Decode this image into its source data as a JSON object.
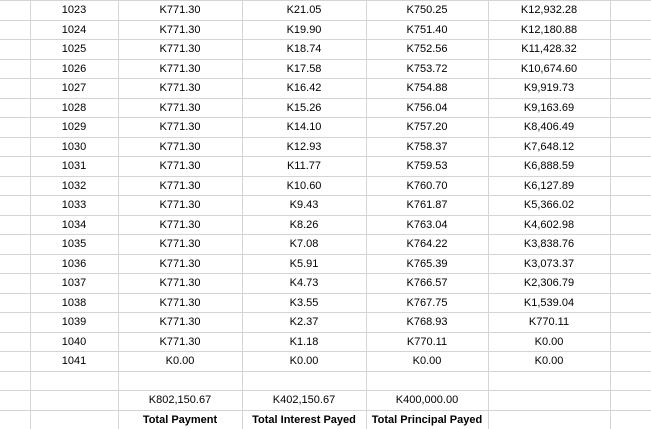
{
  "rows": [
    {
      "period": "1023",
      "payment": "K771.30",
      "interest": "K21.05",
      "principal": "K750.25",
      "balance": "K12,932.28"
    },
    {
      "period": "1024",
      "payment": "K771.30",
      "interest": "K19.90",
      "principal": "K751.40",
      "balance": "K12,180.88"
    },
    {
      "period": "1025",
      "payment": "K771.30",
      "interest": "K18.74",
      "principal": "K752.56",
      "balance": "K11,428.32"
    },
    {
      "period": "1026",
      "payment": "K771.30",
      "interest": "K17.58",
      "principal": "K753.72",
      "balance": "K10,674.60"
    },
    {
      "period": "1027",
      "payment": "K771.30",
      "interest": "K16.42",
      "principal": "K754.88",
      "balance": "K9,919.73"
    },
    {
      "period": "1028",
      "payment": "K771.30",
      "interest": "K15.26",
      "principal": "K756.04",
      "balance": "K9,163.69"
    },
    {
      "period": "1029",
      "payment": "K771.30",
      "interest": "K14.10",
      "principal": "K757.20",
      "balance": "K8,406.49"
    },
    {
      "period": "1030",
      "payment": "K771.30",
      "interest": "K12.93",
      "principal": "K758.37",
      "balance": "K7,648.12"
    },
    {
      "period": "1031",
      "payment": "K771.30",
      "interest": "K11.77",
      "principal": "K759.53",
      "balance": "K6,888.59"
    },
    {
      "period": "1032",
      "payment": "K771.30",
      "interest": "K10.60",
      "principal": "K760.70",
      "balance": "K6,127.89"
    },
    {
      "period": "1033",
      "payment": "K771.30",
      "interest": "K9.43",
      "principal": "K761.87",
      "balance": "K5,366.02"
    },
    {
      "period": "1034",
      "payment": "K771.30",
      "interest": "K8.26",
      "principal": "K763.04",
      "balance": "K4,602.98"
    },
    {
      "period": "1035",
      "payment": "K771.30",
      "interest": "K7.08",
      "principal": "K764.22",
      "balance": "K3,838.76"
    },
    {
      "period": "1036",
      "payment": "K771.30",
      "interest": "K5.91",
      "principal": "K765.39",
      "balance": "K3,073.37"
    },
    {
      "period": "1037",
      "payment": "K771.30",
      "interest": "K4.73",
      "principal": "K766.57",
      "balance": "K2,306.79"
    },
    {
      "period": "1038",
      "payment": "K771.30",
      "interest": "K3.55",
      "principal": "K767.75",
      "balance": "K1,539.04"
    },
    {
      "period": "1039",
      "payment": "K771.30",
      "interest": "K2.37",
      "principal": "K768.93",
      "balance": "K770.11"
    },
    {
      "period": "1040",
      "payment": "K771.30",
      "interest": "K1.18",
      "principal": "K770.11",
      "balance": "K0.00"
    },
    {
      "period": "1041",
      "payment": "K0.00",
      "interest": "K0.00",
      "principal": "K0.00",
      "balance": "K0.00"
    }
  ],
  "totals": {
    "payment_value": "K802,150.67",
    "payment_label": "Total Payment",
    "interest_value": "K402,150.67",
    "interest_label": "Total Interest Payed",
    "principal_value": "K400,000.00",
    "principal_label": "Total Principal Payed"
  }
}
